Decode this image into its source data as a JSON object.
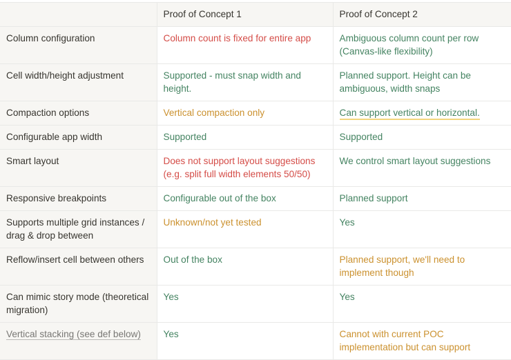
{
  "table": {
    "headers": [
      "",
      "Proof of Concept 1",
      "Proof of Concept 2"
    ],
    "rows": [
      {
        "feature": "Column configuration",
        "poc1": "Column count is fixed for entire app",
        "poc2": "Ambiguous column count per row (Canvas-like flexibility)"
      },
      {
        "feature": "Cell width/height adjustment",
        "poc1": "Supported - must snap width and height.",
        "poc2": "Planned support. Height can be ambiguous, width snaps"
      },
      {
        "feature": "Compaction options",
        "poc1": "Vertical compaction only",
        "poc2": "Can support vertical or horizontal."
      },
      {
        "feature": "Configurable app width",
        "poc1": "Supported",
        "poc2": "Supported"
      },
      {
        "feature": "Smart layout",
        "poc1": "Does not support layout suggestions (e.g. split full width elements 50/50)",
        "poc2": "We control smart layout suggestions"
      },
      {
        "feature": "Responsive breakpoints",
        "poc1": "Configurable out of the box",
        "poc2": "Planned support"
      },
      {
        "feature": "Supports multiple grid instances / drag & drop between",
        "poc1": "Unknown/not yet tested",
        "poc2": "Yes"
      },
      {
        "feature": "Reflow/insert cell between others",
        "poc1": "Out of the box",
        "poc2": "Planned support, we'll need to implement though"
      },
      {
        "feature": "Can mimic story mode (theoretical migration)",
        "poc1": "Yes",
        "poc2": "Yes"
      },
      {
        "feature": "Vertical stacking (see def below)",
        "poc1": "Yes",
        "poc2": "Cannot with current POC implementation but can support"
      }
    ]
  },
  "colors": {
    "negative": "#d44c47",
    "positive": "#448361",
    "caution": "#cb912f",
    "highlight_underline": "#f2d57c"
  }
}
